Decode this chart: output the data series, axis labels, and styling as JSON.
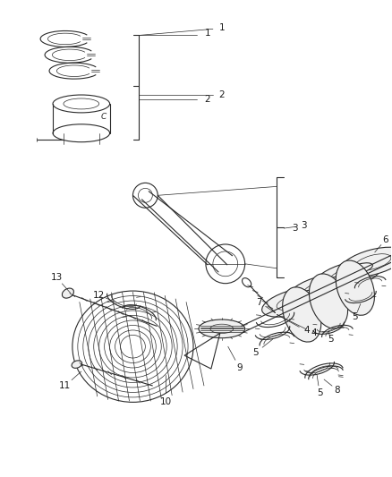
{
  "background_color": "#ffffff",
  "line_color": "#2a2a2a",
  "label_color": "#1a1a1a",
  "figsize": [
    4.38,
    5.33
  ],
  "dpi": 100,
  "lw_main": 0.8,
  "lw_thin": 0.5,
  "label_fontsize": 7.5
}
